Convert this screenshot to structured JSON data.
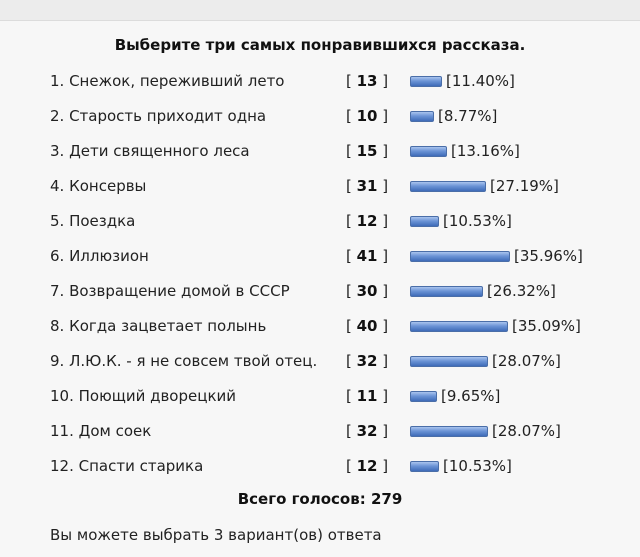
{
  "poll": {
    "question": "Выберите три самых понравившихся рассказа.",
    "options": [
      {
        "label": "1. Снежок, переживший лето",
        "votes": "13",
        "percent": "[11.40%]",
        "share": 0.114
      },
      {
        "label": "2. Старость приходит одна",
        "votes": "10",
        "percent": "[8.77%]",
        "share": 0.0877
      },
      {
        "label": "3. Дети священного леса",
        "votes": "15",
        "percent": "[13.16%]",
        "share": 0.1316
      },
      {
        "label": "4. Консервы",
        "votes": "31",
        "percent": "[27.19%]",
        "share": 0.2719
      },
      {
        "label": "5. Поездка",
        "votes": "12",
        "percent": "[10.53%]",
        "share": 0.1053
      },
      {
        "label": "6. Иллюзион",
        "votes": "41",
        "percent": "[35.96%]",
        "share": 0.3596
      },
      {
        "label": "7. Возвращение домой в СССР",
        "votes": "30",
        "percent": "[26.32%]",
        "share": 0.2632
      },
      {
        "label": "8. Когда зацветает полынь",
        "votes": "40",
        "percent": "[35.09%]",
        "share": 0.3509
      },
      {
        "label": "9. Л.Ю.К. - я не совсем твой отец.",
        "votes": "32",
        "percent": "[28.07%]",
        "share": 0.2807
      },
      {
        "label": "10. Поющий дворецкий",
        "votes": "11",
        "percent": "[9.65%]",
        "share": 0.0965
      },
      {
        "label": "11. Дом соек",
        "votes": "32",
        "percent": "[28.07%]",
        "share": 0.2807
      },
      {
        "label": "12. Спасти старика",
        "votes": "12",
        "percent": "[10.53%]",
        "share": 0.1053
      }
    ],
    "total_votes": "Всего голосов: 279",
    "note": "Вы можете выбрать 3 вариант(ов) ответа"
  }
}
